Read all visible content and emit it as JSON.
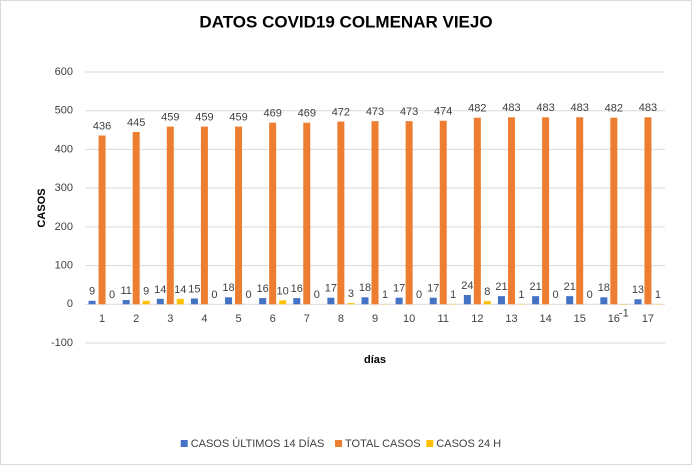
{
  "chart_data": {
    "type": "bar",
    "title": "DATOS COVID19 COLMENAR VIEJO",
    "y_label": "CASOS",
    "x_label": "días",
    "categories": [
      "1",
      "2",
      "3",
      "4",
      "5",
      "6",
      "7",
      "8",
      "9",
      "10",
      "11",
      "12",
      "13",
      "14",
      "15",
      "16",
      "17"
    ],
    "series": [
      {
        "name": "CASOS ÚLTIMOS 14 DÍAS",
        "color": "#4472c4",
        "values": [
          9,
          11,
          14,
          15,
          18,
          16,
          16,
          17,
          18,
          17,
          17,
          24,
          21,
          21,
          21,
          18,
          13
        ]
      },
      {
        "name": "TOTAL CASOS",
        "color": "#ed7d31",
        "values": [
          436,
          445,
          459,
          459,
          459,
          469,
          469,
          472,
          473,
          473,
          474,
          482,
          483,
          483,
          483,
          482,
          483
        ]
      },
      {
        "name": "CASOS 24 H",
        "color": "#ffc000",
        "values": [
          0,
          9,
          14,
          0,
          0,
          10,
          0,
          3,
          1,
          0,
          1,
          8,
          1,
          0,
          0,
          -1,
          1
        ]
      }
    ],
    "ylim": [
      -100,
      600
    ],
    "yticks": [
      -100,
      0,
      100,
      200,
      300,
      400,
      500,
      600
    ],
    "grid": true,
    "legend": "bottom"
  }
}
